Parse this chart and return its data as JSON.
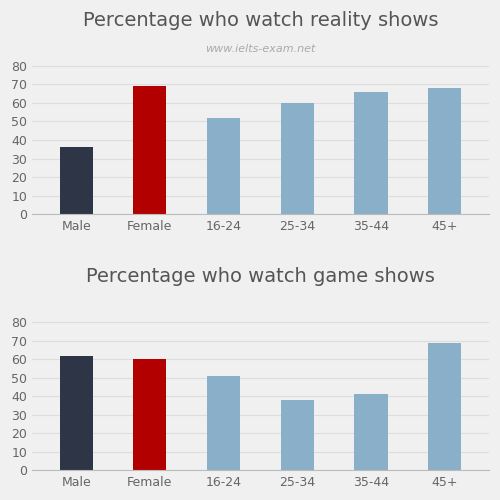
{
  "chart1": {
    "title": "Percentage who watch reality shows",
    "subtitle": "www.ielts-exam.net",
    "categories": [
      "Male",
      "Female",
      "16-24",
      "25-34",
      "35-44",
      "45+"
    ],
    "values": [
      36,
      69,
      52,
      60,
      66,
      68
    ],
    "colors": [
      "#2e3547",
      "#b20000",
      "#8aafc8",
      "#8aafc8",
      "#8aafc8",
      "#8aafc8"
    ],
    "ylim": [
      0,
      88
    ],
    "yticks": [
      0,
      10,
      20,
      30,
      40,
      50,
      60,
      70,
      80
    ]
  },
  "chart2": {
    "title": "Percentage who watch game shows",
    "subtitle": "",
    "categories": [
      "Male",
      "Female",
      "16-24",
      "25-34",
      "35-44",
      "45+"
    ],
    "values": [
      62,
      60,
      51,
      38,
      41,
      69
    ],
    "colors": [
      "#2e3547",
      "#b20000",
      "#8aafc8",
      "#8aafc8",
      "#8aafc8",
      "#8aafc8"
    ],
    "ylim": [
      0,
      88
    ],
    "yticks": [
      0,
      10,
      20,
      30,
      40,
      50,
      60,
      70,
      80
    ]
  },
  "background_color": "#f0f0f0",
  "title_fontsize": 14,
  "subtitle_fontsize": 8,
  "tick_fontsize": 9,
  "bar_width": 0.45
}
